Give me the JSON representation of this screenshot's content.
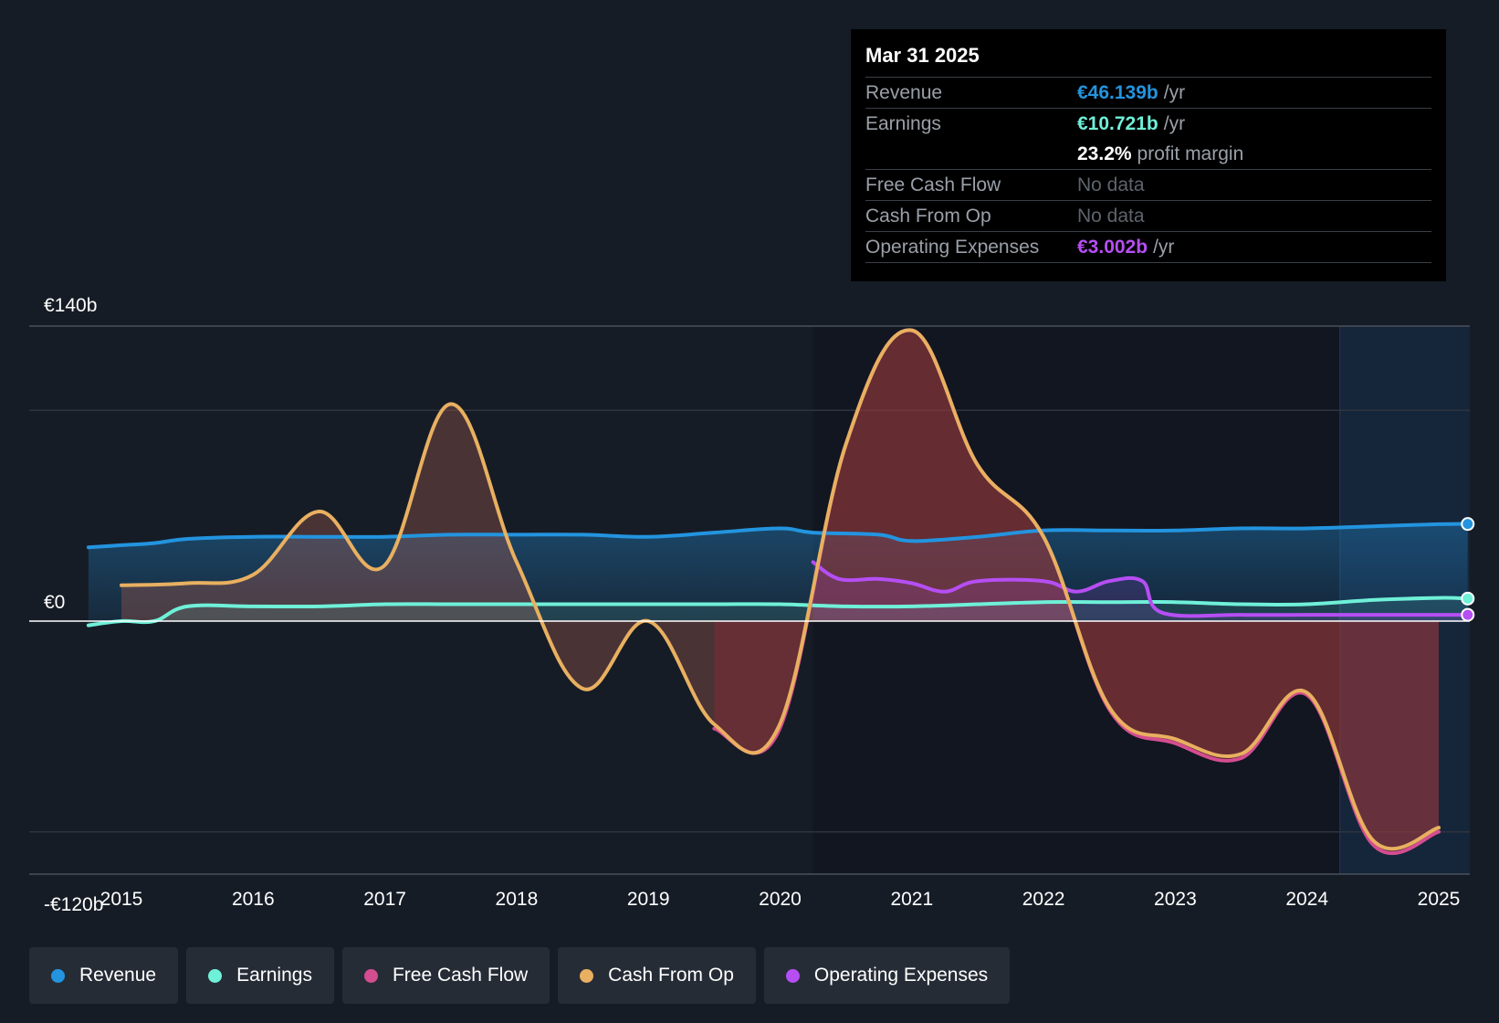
{
  "tooltip": {
    "date": "Mar 31 2025",
    "rows": [
      {
        "label": "Revenue",
        "value": "€46.139b",
        "unit": "/yr",
        "color": "#2394df"
      },
      {
        "label": "Earnings",
        "value": "€10.721b",
        "unit": "/yr",
        "color": "#6ff0d8"
      },
      {
        "label": "",
        "value": "23.2%",
        "unit": "profit margin",
        "color": "#ffffff"
      },
      {
        "label": "Free Cash Flow",
        "value": "No data",
        "unit": "",
        "color": "#5e646c"
      },
      {
        "label": "Cash From Op",
        "value": "No data",
        "unit": "",
        "color": "#5e646c"
      },
      {
        "label": "Operating Expenses",
        "value": "€3.002b",
        "unit": "/yr",
        "color": "#b64ef4"
      }
    ]
  },
  "legend": [
    {
      "label": "Revenue",
      "color": "#2394df"
    },
    {
      "label": "Earnings",
      "color": "#6ff0d8"
    },
    {
      "label": "Free Cash Flow",
      "color": "#d44d90"
    },
    {
      "label": "Cash From Op",
      "color": "#e8b060"
    },
    {
      "label": "Operating Expenses",
      "color": "#b64ef4"
    }
  ],
  "chart_data": {
    "type": "line",
    "title": "",
    "xlabel": "",
    "ylabel": "",
    "ylim": [
      -120,
      140
    ],
    "xlim": [
      2014.3,
      2025.2
    ],
    "y_tick_labels": [
      {
        "value": 140,
        "label": "€140b"
      },
      {
        "value": 0,
        "label": "€0"
      },
      {
        "value": -120,
        "label": "-€120b"
      }
    ],
    "gridlines": [
      140,
      100,
      0,
      -100
    ],
    "x_ticks": [
      2015,
      2016,
      2017,
      2018,
      2019,
      2020,
      2021,
      2022,
      2023,
      2024,
      2025
    ],
    "forecast_start": 2024.25,
    "series": [
      {
        "name": "Revenue",
        "color": "#2394df",
        "x": [
          2014.75,
          2015,
          2015.25,
          2015.5,
          2016,
          2016.5,
          2017,
          2017.5,
          2018,
          2018.5,
          2019,
          2019.5,
          2020,
          2020.25,
          2020.75,
          2021,
          2021.5,
          2022,
          2022.5,
          2023,
          2023.5,
          2024,
          2024.5,
          2025,
          2025.22
        ],
        "y": [
          35,
          36,
          37,
          39,
          40,
          40,
          40,
          41,
          41,
          41,
          40,
          42,
          44,
          42,
          41,
          38,
          40,
          43,
          43,
          43,
          44,
          44,
          45,
          46,
          46.1
        ]
      },
      {
        "name": "Earnings",
        "color": "#6ff0d8",
        "x": [
          2014.75,
          2015,
          2015.25,
          2015.5,
          2016,
          2016.5,
          2017,
          2017.5,
          2018,
          2018.5,
          2019,
          2019.5,
          2020,
          2020.5,
          2021,
          2021.5,
          2022,
          2022.5,
          2023,
          2023.5,
          2024,
          2024.5,
          2025,
          2025.22
        ],
        "y": [
          -2,
          0,
          0,
          7,
          7,
          7,
          8,
          8,
          8,
          8,
          8,
          8,
          8,
          7,
          7,
          8,
          9,
          9,
          9,
          8,
          8,
          10,
          11,
          10.7
        ]
      },
      {
        "name": "Operating Expenses",
        "color": "#b64ef4",
        "x": [
          2020.25,
          2020.45,
          2020.75,
          2021,
          2021.25,
          2021.5,
          2022,
          2022.25,
          2022.5,
          2022.75,
          2022.9,
          2023.5,
          2024,
          2024.5,
          2025,
          2025.22
        ],
        "y": [
          28,
          20,
          20,
          18,
          14,
          19,
          19,
          14,
          19,
          19,
          4,
          3,
          3,
          3,
          3,
          3
        ]
      },
      {
        "name": "Cash From Op",
        "color": "#e8b060",
        "x": [
          2015,
          2015.5,
          2016,
          2016.5,
          2016.99,
          2017.5,
          2018,
          2018.5,
          2019,
          2019.5,
          2019.99,
          2020.5,
          2021,
          2021.5,
          2022,
          2022.5,
          2023,
          2023.5,
          2024,
          2024.5,
          2025
        ],
        "y": [
          17,
          18,
          22,
          52,
          26,
          103,
          28,
          -32,
          0,
          -49,
          -50,
          84,
          138,
          74,
          40,
          -41,
          -56,
          -63,
          -34,
          -104,
          -98
        ]
      },
      {
        "name": "Free Cash Flow",
        "color": "#d44d90",
        "x": [
          2019.5,
          2019.99,
          2020.5,
          2021,
          2021.5,
          2022,
          2022.5,
          2023,
          2023.5,
          2024,
          2024.5,
          2025
        ],
        "y": [
          -51,
          -52,
          84,
          138,
          74,
          40,
          -42,
          -58,
          -65,
          -35,
          -106,
          -100
        ]
      }
    ]
  }
}
